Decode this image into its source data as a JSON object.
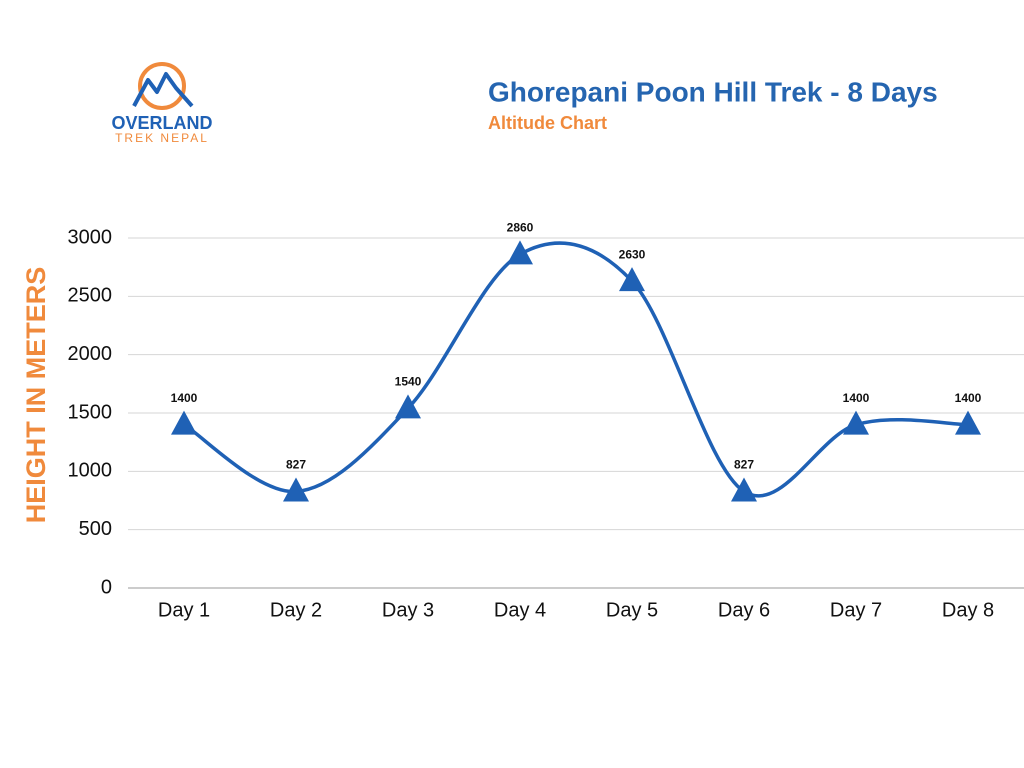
{
  "logo": {
    "line1": "OVERLAND",
    "line2": "TREK NEPAL"
  },
  "chart_data": {
    "type": "line",
    "title": "Ghorepani Poon Hill Trek - 8 Days",
    "subtitle": "Altitude Chart",
    "y_label": "HEIGHT IN METERS",
    "categories": [
      "Day 1",
      "Day 2",
      "Day 3",
      "Day 4",
      "Day 5",
      "Day 6",
      "Day 7",
      "Day 8"
    ],
    "values": [
      1400,
      827,
      1540,
      2860,
      2630,
      827,
      1400,
      1400
    ],
    "color": "#1f61b5",
    "marker": "triangle",
    "smooth": true,
    "data_labels": true,
    "ylim": [
      0,
      3000
    ],
    "yticks": [
      0,
      500,
      1000,
      1500,
      2000,
      2500,
      3000
    ],
    "grid": true
  }
}
